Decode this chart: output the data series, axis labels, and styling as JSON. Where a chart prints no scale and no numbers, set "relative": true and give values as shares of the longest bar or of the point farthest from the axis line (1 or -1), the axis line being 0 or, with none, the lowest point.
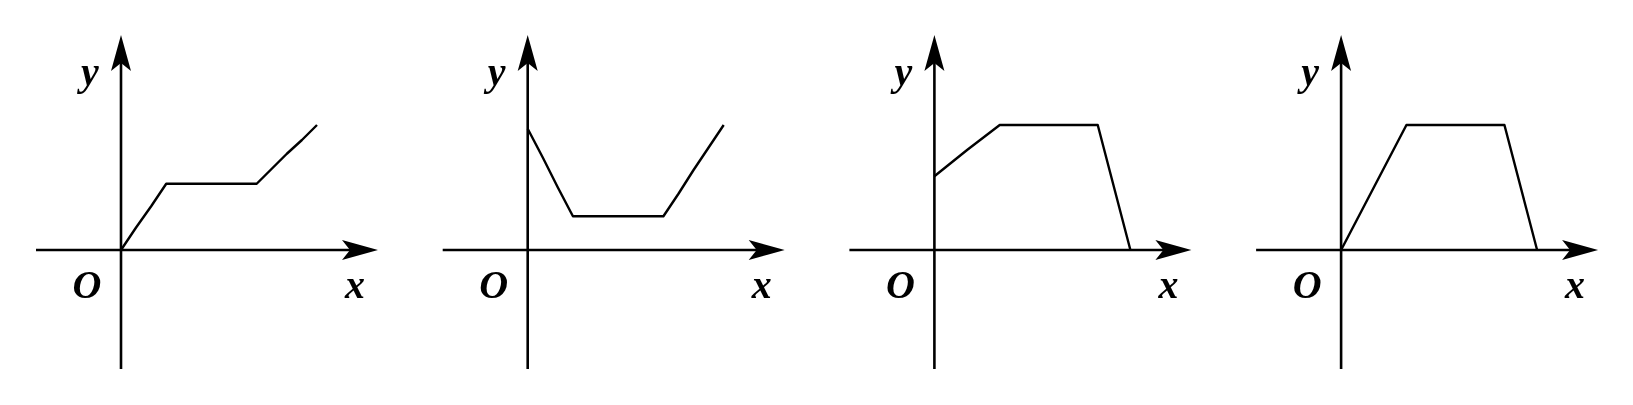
{
  "chart_data": [
    {
      "type": "line",
      "relative": true,
      "categories": [
        null,
        null,
        null,
        null,
        null,
        null,
        null,
        null,
        null,
        null,
        null,
        null,
        null,
        null
      ],
      "values": [
        0,
        0.18,
        0.35,
        0.53,
        0.53,
        0.53,
        0.53,
        0.53,
        0.53,
        0.53,
        0.65,
        0.77,
        0.88,
        1
      ],
      "color": "#000000",
      "xlabel": "x",
      "ylabel": "y",
      "annotations": [
        "O"
      ]
    },
    {
      "type": "line",
      "relative": true,
      "categories": [
        null,
        null,
        null,
        null,
        null,
        null,
        null,
        null,
        null,
        null,
        null,
        null,
        null,
        null
      ],
      "values": [
        0.97,
        0.74,
        0.5,
        0.27,
        0.27,
        0.27,
        0.27,
        0.27,
        0.27,
        0.27,
        0.45,
        0.64,
        0.82,
        1
      ],
      "color": "#000000",
      "xlabel": "x",
      "ylabel": "y",
      "annotations": [
        "O"
      ]
    },
    {
      "type": "line",
      "relative": true,
      "categories": [
        null,
        null,
        null,
        null,
        null,
        null,
        null
      ],
      "values": [
        0.59,
        0.8,
        1,
        1,
        1,
        1,
        0
      ],
      "color": "#000000",
      "xlabel": "x",
      "ylabel": "y",
      "annotations": [
        "O"
      ]
    },
    {
      "type": "line",
      "relative": true,
      "categories": [
        null,
        null,
        null,
        null,
        null,
        null,
        null
      ],
      "values": [
        0,
        0.5,
        1,
        1,
        1,
        1,
        0
      ],
      "color": "#000000",
      "xlabel": "x",
      "ylabel": "y",
      "annotations": [
        "O"
      ]
    }
  ]
}
